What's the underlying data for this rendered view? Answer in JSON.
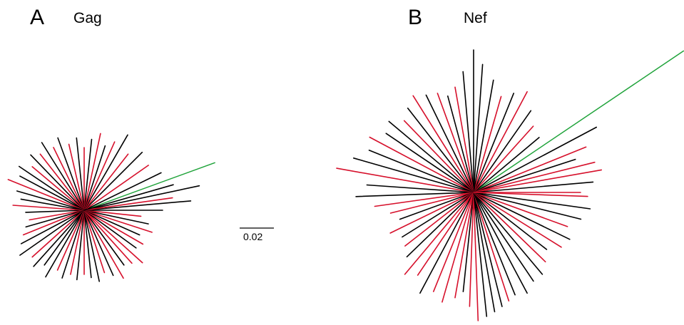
{
  "panels": [
    {
      "letter": "A",
      "title": "Gag"
    },
    {
      "letter": "B",
      "title": "Nef"
    }
  ],
  "scale_bar": {
    "label": "0.02"
  },
  "colors": {
    "group_1": "#000000",
    "group_2": "#d6102b",
    "outlier": "#1fa33a"
  },
  "description_of_marks": "unrooted star phylogenies; branches colored black, red, or green (single long outlier branch)"
}
